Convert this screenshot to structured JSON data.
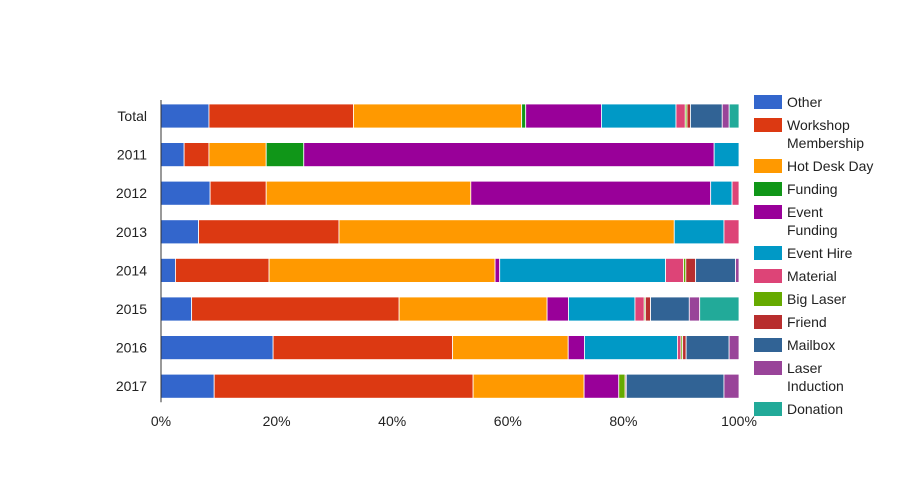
{
  "chart_data": {
    "type": "bar",
    "orientation": "horizontal",
    "stacked": "percent",
    "categories": [
      "Total",
      "2011",
      "2012",
      "2013",
      "2014",
      "2015",
      "2016",
      "2017"
    ],
    "x_ticks": [
      "0%",
      "20%",
      "40%",
      "60%",
      "80%",
      "100%"
    ],
    "xlim": [
      0,
      100
    ],
    "legend_position": "right",
    "grid": false,
    "series": [
      {
        "name": "Other",
        "color": "#3366cc",
        "values": [
          8.3,
          4.0,
          8.5,
          6.5,
          2.5,
          5.3,
          19.3,
          9.2
        ]
      },
      {
        "name": "Workshop Membership",
        "color": "#dc3912",
        "values": [
          25.0,
          4.3,
          9.7,
          24.3,
          16.2,
          35.9,
          30.9,
          44.8
        ]
      },
      {
        "name": "Hot Desk Day",
        "color": "#ff9900",
        "values": [
          29.1,
          9.9,
          35.4,
          58.0,
          39.1,
          25.6,
          19.9,
          19.2
        ]
      },
      {
        "name": "Funding",
        "color": "#109618",
        "values": [
          0.7,
          6.5,
          0,
          0,
          0,
          0,
          0,
          0
        ]
      },
      {
        "name": "Event Funding",
        "color": "#990099",
        "values": [
          13.1,
          71.0,
          41.5,
          0,
          0.8,
          3.7,
          2.8,
          6.0
        ]
      },
      {
        "name": "Event Hire",
        "color": "#0099c6",
        "values": [
          12.9,
          4.3,
          3.7,
          8.6,
          28.7,
          11.5,
          16.0,
          0
        ]
      },
      {
        "name": "Material",
        "color": "#dd4477",
        "values": [
          1.6,
          0,
          1.2,
          2.6,
          3.1,
          1.6,
          0.6,
          0
        ]
      },
      {
        "name": "Big Laser",
        "color": "#66aa00",
        "values": [
          0.3,
          0,
          0,
          0,
          0.4,
          0.2,
          0.3,
          1.1
        ]
      },
      {
        "name": "Friend",
        "color": "#b82e2e",
        "values": [
          0.6,
          0,
          0,
          0,
          1.7,
          0.9,
          0.6,
          0.2
        ]
      },
      {
        "name": "Mailbox",
        "color": "#316395",
        "values": [
          5.5,
          0,
          0,
          0,
          6.9,
          6.7,
          7.4,
          16.9
        ]
      },
      {
        "name": "Laser Induction",
        "color": "#994499",
        "values": [
          1.2,
          0,
          0,
          0,
          0.6,
          1.8,
          1.7,
          2.6
        ]
      },
      {
        "name": "Donation",
        "color": "#22aa99",
        "values": [
          1.7,
          0,
          0,
          0,
          0,
          6.8,
          0,
          0
        ]
      }
    ]
  }
}
